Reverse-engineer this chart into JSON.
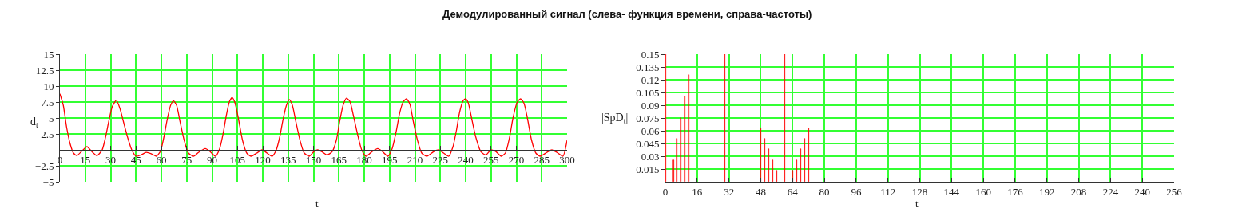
{
  "chart_data": [
    {
      "type": "line",
      "title": "Демодулированный сигнал (слева- функция времени, справа-частоты)",
      "xlabel": "t",
      "ylabel": "d$_{t}$",
      "x": [
        0,
        2,
        4,
        6,
        8,
        10,
        13,
        16,
        19,
        22,
        25,
        27,
        29,
        31,
        33.4,
        35.5,
        37.5,
        40,
        42.5,
        45,
        48,
        51,
        54,
        57,
        59.5,
        61.5,
        63.5,
        65.5,
        67.2,
        69,
        71,
        73.5,
        76,
        79,
        82,
        86,
        89,
        92,
        94.5,
        96.5,
        98.5,
        100.3,
        101.9,
        103.5,
        105.5,
        108,
        110.5,
        113,
        116.5,
        119.5,
        122.5,
        125.5,
        128,
        130,
        132,
        134,
        135.7,
        137.5,
        139.5,
        142,
        144.5,
        147.5,
        150.5,
        152.5,
        155,
        158,
        161,
        163.5,
        165.5,
        167.5,
        169.5,
        171.5,
        173.5,
        176,
        178.5,
        181,
        184.5,
        188,
        191,
        194,
        196.5,
        199,
        201,
        203,
        205,
        207,
        209,
        211.5,
        214,
        217,
        221,
        224,
        227,
        230,
        232.5,
        234.5,
        236.5,
        238.5,
        240,
        241.5,
        243.5,
        246,
        249,
        252,
        255,
        258,
        261,
        263.5,
        266,
        268,
        270.5,
        272.5,
        274.5,
        276.5,
        279,
        281.5,
        284,
        288,
        291,
        294,
        297.5,
        300
      ],
      "series": [
        {
          "color": "#ff0000",
          "values": [
            8.8,
            7,
            3.5,
            1,
            -0.5,
            -0.9,
            -0.2,
            0.5,
            -0.3,
            -0.9,
            0,
            2,
            4.6,
            6.8,
            7.8,
            6.5,
            4.5,
            2,
            0,
            -1,
            -0.8,
            -0.4,
            -0.6,
            -1,
            -0.2,
            2,
            4.8,
            7,
            7.7,
            7,
            4.5,
            1.5,
            -0.5,
            -1,
            -0.4,
            0.2,
            -0.3,
            -1,
            0.2,
            2.5,
            5.5,
            7.6,
            8.2,
            7.4,
            5,
            1.5,
            -0.5,
            -1,
            -0.5,
            0,
            -0.5,
            -1,
            0,
            2,
            4.8,
            7,
            7.9,
            7,
            4.5,
            1.5,
            -0.5,
            -1,
            -0.2,
            0,
            -0.3,
            -0.8,
            -0.3,
            1.5,
            4.5,
            7,
            8.1,
            7.6,
            5.5,
            2.5,
            0,
            -1,
            -0.3,
            0.2,
            -0.3,
            -1,
            0.2,
            3,
            5.8,
            7.5,
            8,
            7.2,
            4.5,
            1.5,
            -0.5,
            -1,
            -0.3,
            0,
            -0.5,
            -1,
            0.5,
            3,
            6,
            7.7,
            8,
            7.4,
            5,
            2,
            -0.3,
            -0.8,
            0,
            -0.3,
            -1,
            -0.5,
            2,
            5,
            7.5,
            8,
            7.3,
            5,
            1.5,
            -0.5,
            -1,
            -0.4,
            0,
            -0.4,
            -1,
            1.5
          ]
        }
      ],
      "xlim": [
        0,
        300
      ],
      "xticks": [
        0,
        15,
        30,
        45,
        60,
        75,
        90,
        105,
        120,
        135,
        150,
        165,
        180,
        195,
        210,
        225,
        240,
        255,
        270,
        285,
        300
      ],
      "ylim": [
        -5,
        15
      ],
      "yticks": [
        {
          "value": -5,
          "label": "−5"
        },
        {
          "value": -2.5,
          "label": "−2.5"
        },
        2.5,
        5,
        7.5,
        10,
        12.5,
        15
      ],
      "grid": true,
      "line_style": "solid"
    },
    {
      "type": "bar",
      "xlabel": "t",
      "ylabel": "|SpD$_{t}$|",
      "x": [
        0,
        4,
        6,
        8,
        10,
        12,
        30,
        48,
        50,
        52,
        54,
        56,
        60,
        64,
        66,
        68,
        70,
        72
      ],
      "values": [
        0.15,
        0.025,
        0.051,
        0.075,
        0.1,
        0.126,
        0.15,
        0.063,
        0.051,
        0.038,
        0.025,
        0.013,
        0.15,
        0.013,
        0.025,
        0.038,
        0.051,
        0.063
      ],
      "color": "#ff0000",
      "xlim": [
        0,
        256
      ],
      "xticks": [
        0,
        16,
        32,
        48,
        64,
        80,
        96,
        112,
        128,
        144,
        160,
        176,
        192,
        208,
        224,
        240,
        256
      ],
      "ylim": [
        0,
        0.15
      ],
      "yticks": [
        0.015,
        0.03,
        0.045,
        0.06,
        0.075,
        0.09,
        0.105,
        0.12,
        0.135,
        0.15
      ],
      "grid": true
    }
  ]
}
